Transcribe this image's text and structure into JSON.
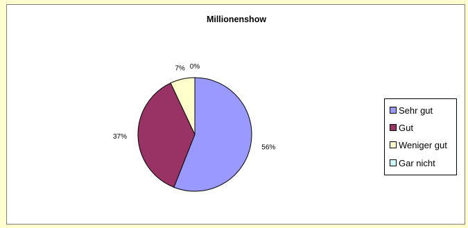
{
  "chart_data": {
    "type": "pie",
    "title": "Millionenshow",
    "categories": [
      "Sehr gut",
      "Gut",
      "Weniger gut",
      "Gar nicht"
    ],
    "values": [
      56,
      37,
      7,
      0
    ],
    "data_labels": [
      "56%",
      "37%",
      "7%",
      "0%"
    ],
    "colors": [
      "#9999ff",
      "#993366",
      "#ffffcc",
      "#ccffff"
    ],
    "legend_position": "right",
    "start_angle_deg": 0,
    "direction": "clockwise"
  },
  "colors": {
    "outer_background": "#fffecf",
    "plot_background": "#ffffff",
    "outline": "#000000"
  }
}
